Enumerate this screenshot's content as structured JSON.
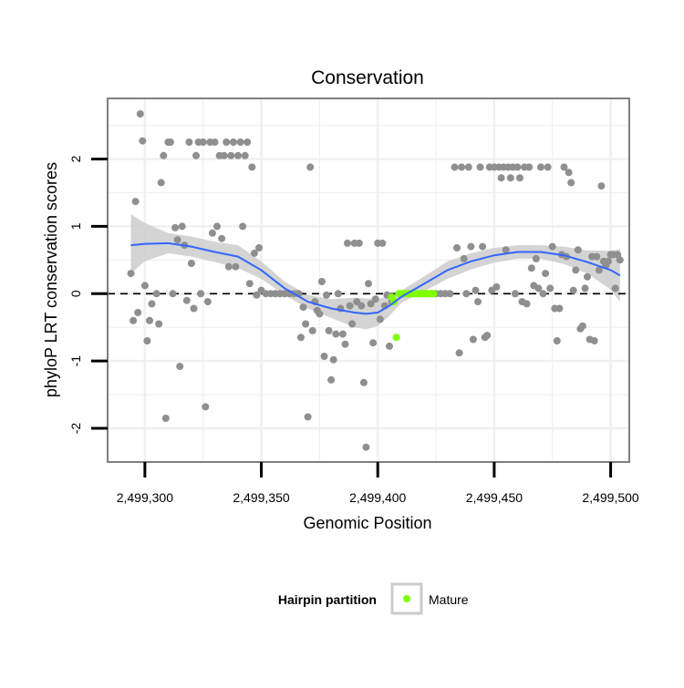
{
  "chart_data": {
    "type": "scatter",
    "title": "Conservation",
    "xlabel": "Genomic Position",
    "ylabel": "phyloP LRT conservation scores",
    "xlim": [
      2499284,
      2499508
    ],
    "ylim": [
      -2.5,
      2.9
    ],
    "x_ticks": [
      {
        "value": 2499300,
        "label": "2,499,300"
      },
      {
        "value": 2499350,
        "label": "2,499,350"
      },
      {
        "value": 2499400,
        "label": "2,499,400"
      },
      {
        "value": 2499450,
        "label": "2,499,450"
      },
      {
        "value": 2499500,
        "label": "2,499,500"
      }
    ],
    "y_ticks": [
      {
        "value": -2,
        "label": "-2"
      },
      {
        "value": -1,
        "label": "-1"
      },
      {
        "value": 0,
        "label": "0"
      },
      {
        "value": 1,
        "label": "1"
      },
      {
        "value": 2,
        "label": "2"
      }
    ],
    "grid": true,
    "reference_line": {
      "y": 0,
      "style": "dashed"
    },
    "legend": {
      "title": "Hairpin partition",
      "position": "bottom",
      "entries": [
        {
          "label": "Mature",
          "color": "#7fff00"
        }
      ]
    },
    "colors": {
      "points": "#8f8f8f",
      "mature": "#7fff00",
      "smooth_line": "#3366ff",
      "ribbon": "#cccccc",
      "panel_border": "#7f7f7f",
      "grid": "#f0f0f0"
    },
    "series": [
      {
        "points": [
          [
            2499294,
            0.3
          ],
          [
            2499295,
            -0.4
          ],
          [
            2499296,
            1.37
          ],
          [
            2499297,
            -0.28
          ],
          [
            2499298,
            2.67
          ],
          [
            2499299,
            2.27
          ],
          [
            2499300,
            0.12
          ],
          [
            2499301,
            -0.7
          ],
          [
            2499302,
            -0.4
          ],
          [
            2499303,
            -0.15
          ],
          [
            2499305,
            0.0
          ],
          [
            2499306,
            -0.45
          ],
          [
            2499307,
            1.65
          ],
          [
            2499308,
            2.05
          ],
          [
            2499309,
            -1.85
          ],
          [
            2499310,
            2.25
          ],
          [
            2499311,
            2.25
          ],
          [
            2499312,
            0.0
          ],
          [
            2499313,
            0.98
          ],
          [
            2499314,
            0.8
          ],
          [
            2499315,
            -1.08
          ],
          [
            2499316,
            1.0
          ],
          [
            2499317,
            0.72
          ],
          [
            2499318,
            -0.1
          ],
          [
            2499319,
            2.25
          ],
          [
            2499320,
            0.45
          ],
          [
            2499321,
            -0.22
          ],
          [
            2499322,
            2.05
          ],
          [
            2499323,
            2.25
          ],
          [
            2499324,
            0.0
          ],
          [
            2499325,
            2.25
          ],
          [
            2499326,
            -1.68
          ],
          [
            2499327,
            -0.12
          ],
          [
            2499328,
            2.25
          ],
          [
            2499329,
            0.9
          ],
          [
            2499330,
            2.25
          ],
          [
            2499331,
            1.0
          ],
          [
            2499332,
            2.05
          ],
          [
            2499333,
            0.82
          ],
          [
            2499334,
            2.05
          ],
          [
            2499335,
            2.25
          ],
          [
            2499336,
            0.4
          ],
          [
            2499337,
            2.05
          ],
          [
            2499338,
            2.25
          ],
          [
            2499339,
            0.4
          ],
          [
            2499340,
            2.05
          ],
          [
            2499341,
            2.25
          ],
          [
            2499342,
            1.0
          ],
          [
            2499343,
            2.05
          ],
          [
            2499344,
            2.25
          ],
          [
            2499345,
            0.15
          ],
          [
            2499346,
            1.88
          ],
          [
            2499347,
            0.6
          ],
          [
            2499348,
            -0.02
          ],
          [
            2499349,
            0.68
          ],
          [
            2499350,
            0.05
          ],
          [
            2499352,
            0.0
          ],
          [
            2499354,
            0.0
          ],
          [
            2499356,
            0.0
          ],
          [
            2499358,
            0.0
          ],
          [
            2499360,
            0.0
          ],
          [
            2499362,
            0.0
          ],
          [
            2499364,
            0.0
          ],
          [
            2499366,
            0.0
          ],
          [
            2499367,
            -0.65
          ],
          [
            2499368,
            -0.2
          ],
          [
            2499369,
            -0.45
          ],
          [
            2499370,
            -1.83
          ],
          [
            2499371,
            1.88
          ],
          [
            2499372,
            -0.55
          ],
          [
            2499373,
            -0.12
          ],
          [
            2499374,
            -0.25
          ],
          [
            2499375,
            -0.3
          ],
          [
            2499376,
            0.18
          ],
          [
            2499377,
            -0.93
          ],
          [
            2499378,
            -0.02
          ],
          [
            2499379,
            -0.55
          ],
          [
            2499380,
            -1.28
          ],
          [
            2499381,
            -0.98
          ],
          [
            2499382,
            -0.6
          ],
          [
            2499383,
            0.0
          ],
          [
            2499384,
            -0.22
          ],
          [
            2499385,
            -0.6
          ],
          [
            2499386,
            -0.75
          ],
          [
            2499387,
            0.75
          ],
          [
            2499388,
            -0.18
          ],
          [
            2499389,
            -0.45
          ],
          [
            2499390,
            0.75
          ],
          [
            2499391,
            -0.12
          ],
          [
            2499392,
            0.75
          ],
          [
            2499393,
            -0.18
          ],
          [
            2499394,
            -1.32
          ],
          [
            2499395,
            -2.28
          ],
          [
            2499396,
            0.15
          ],
          [
            2499397,
            -0.15
          ],
          [
            2499398,
            -0.73
          ],
          [
            2499399,
            -0.08
          ],
          [
            2499400,
            0.75
          ],
          [
            2499401,
            -0.38
          ],
          [
            2499402,
            0.75
          ],
          [
            2499403,
            -0.18
          ],
          [
            2499404,
            -0.02
          ],
          [
            2499405,
            -0.78
          ],
          [
            2499406,
            -0.12
          ],
          [
            2499411,
            0.0
          ],
          [
            2499413,
            0.0
          ],
          [
            2499415,
            0.0
          ],
          [
            2499417,
            0.0
          ],
          [
            2499419,
            0.0
          ],
          [
            2499421,
            0.0
          ],
          [
            2499423,
            0.0
          ],
          [
            2499425,
            0.0
          ],
          [
            2499427,
            0.0
          ],
          [
            2499429,
            0.0
          ],
          [
            2499431,
            0.0
          ],
          [
            2499433,
            1.88
          ],
          [
            2499434,
            0.68
          ],
          [
            2499435,
            -0.88
          ],
          [
            2499436,
            1.88
          ],
          [
            2499437,
            0.52
          ],
          [
            2499438,
            0.0
          ],
          [
            2499439,
            1.88
          ],
          [
            2499440,
            0.7
          ],
          [
            2499441,
            -0.68
          ],
          [
            2499442,
            0.05
          ],
          [
            2499443,
            -0.12
          ],
          [
            2499444,
            1.88
          ],
          [
            2499445,
            0.7
          ],
          [
            2499446,
            -0.65
          ],
          [
            2499447,
            -0.62
          ],
          [
            2499448,
            1.88
          ],
          [
            2499449,
            0.05
          ],
          [
            2499450,
            1.88
          ],
          [
            2499451,
            0.1
          ],
          [
            2499452,
            1.88
          ],
          [
            2499453,
            1.72
          ],
          [
            2499454,
            1.88
          ],
          [
            2499455,
            0.65
          ],
          [
            2499456,
            1.88
          ],
          [
            2499457,
            1.72
          ],
          [
            2499458,
            1.88
          ],
          [
            2499459,
            0.0
          ],
          [
            2499460,
            1.88
          ],
          [
            2499461,
            1.72
          ],
          [
            2499462,
            -0.12
          ],
          [
            2499463,
            1.88
          ],
          [
            2499464,
            -0.15
          ],
          [
            2499465,
            1.88
          ],
          [
            2499466,
            0.38
          ],
          [
            2499467,
            0.12
          ],
          [
            2499468,
            0.52
          ],
          [
            2499469,
            0.08
          ],
          [
            2499470,
            1.88
          ],
          [
            2499471,
            0.0
          ],
          [
            2499472,
            0.3
          ],
          [
            2499473,
            1.88
          ],
          [
            2499474,
            0.08
          ],
          [
            2499475,
            0.7
          ],
          [
            2499476,
            -0.22
          ],
          [
            2499477,
            -0.7
          ],
          [
            2499478,
            -0.22
          ],
          [
            2499479,
            0.58
          ],
          [
            2499480,
            1.88
          ],
          [
            2499481,
            0.55
          ],
          [
            2499482,
            1.8
          ],
          [
            2499483,
            1.65
          ],
          [
            2499484,
            0.05
          ],
          [
            2499485,
            0.35
          ],
          [
            2499486,
            0.65
          ],
          [
            2499487,
            -0.52
          ],
          [
            2499488,
            -0.48
          ],
          [
            2499489,
            0.08
          ],
          [
            2499490,
            0.25
          ],
          [
            2499491,
            -0.68
          ],
          [
            2499492,
            0.55
          ],
          [
            2499493,
            -0.7
          ],
          [
            2499494,
            0.55
          ],
          [
            2499495,
            0.35
          ],
          [
            2499496,
            1.6
          ],
          [
            2499497,
            0.48
          ],
          [
            2499498,
            0.42
          ],
          [
            2499499,
            0.48
          ],
          [
            2499500,
            0.58
          ],
          [
            2499501,
            0.58
          ],
          [
            2499502,
            0.08
          ],
          [
            2499503,
            0.58
          ],
          [
            2499504,
            0.5
          ]
        ]
      },
      {
        "name": "Mature",
        "points": [
          [
            2499406,
            -0.05
          ],
          [
            2499407,
            -0.12
          ],
          [
            2499408,
            -0.65
          ],
          [
            2499409,
            0.0
          ],
          [
            2499410,
            0.0
          ],
          [
            2499411,
            0.0
          ],
          [
            2499412,
            0.0
          ],
          [
            2499413,
            0.0
          ],
          [
            2499414,
            0.0
          ],
          [
            2499415,
            0.0
          ],
          [
            2499416,
            0.0
          ],
          [
            2499417,
            0.0
          ],
          [
            2499418,
            0.0
          ],
          [
            2499419,
            0.0
          ],
          [
            2499420,
            0.0
          ],
          [
            2499421,
            0.0
          ],
          [
            2499422,
            0.0
          ],
          [
            2499423,
            0.0
          ],
          [
            2499424,
            0.0
          ]
        ]
      }
    ],
    "smooth": {
      "x": [
        2499294,
        2499300,
        2499310,
        2499320,
        2499330,
        2499340,
        2499350,
        2499360,
        2499370,
        2499380,
        2499390,
        2499395,
        2499400,
        2499405,
        2499410,
        2499420,
        2499430,
        2499440,
        2499450,
        2499460,
        2499470,
        2499480,
        2499490,
        2499500,
        2499504
      ],
      "y": [
        0.72,
        0.74,
        0.75,
        0.7,
        0.62,
        0.55,
        0.35,
        0.08,
        -0.12,
        -0.22,
        -0.28,
        -0.3,
        -0.28,
        -0.18,
        -0.05,
        0.15,
        0.35,
        0.48,
        0.57,
        0.62,
        0.62,
        0.57,
        0.47,
        0.35,
        0.27
      ],
      "lower": [
        0.3,
        0.48,
        0.6,
        0.55,
        0.47,
        0.38,
        0.22,
        -0.02,
        -0.22,
        -0.36,
        -0.5,
        -0.53,
        -0.48,
        -0.33,
        -0.14,
        0.04,
        0.22,
        0.36,
        0.46,
        0.52,
        0.52,
        0.44,
        0.3,
        0.06,
        -0.12
      ],
      "upper": [
        1.18,
        1.05,
        0.9,
        0.85,
        0.77,
        0.72,
        0.48,
        0.18,
        -0.02,
        -0.08,
        -0.06,
        -0.07,
        -0.08,
        -0.03,
        0.04,
        0.26,
        0.48,
        0.6,
        0.68,
        0.72,
        0.72,
        0.7,
        0.64,
        0.64,
        0.66
      ]
    }
  }
}
